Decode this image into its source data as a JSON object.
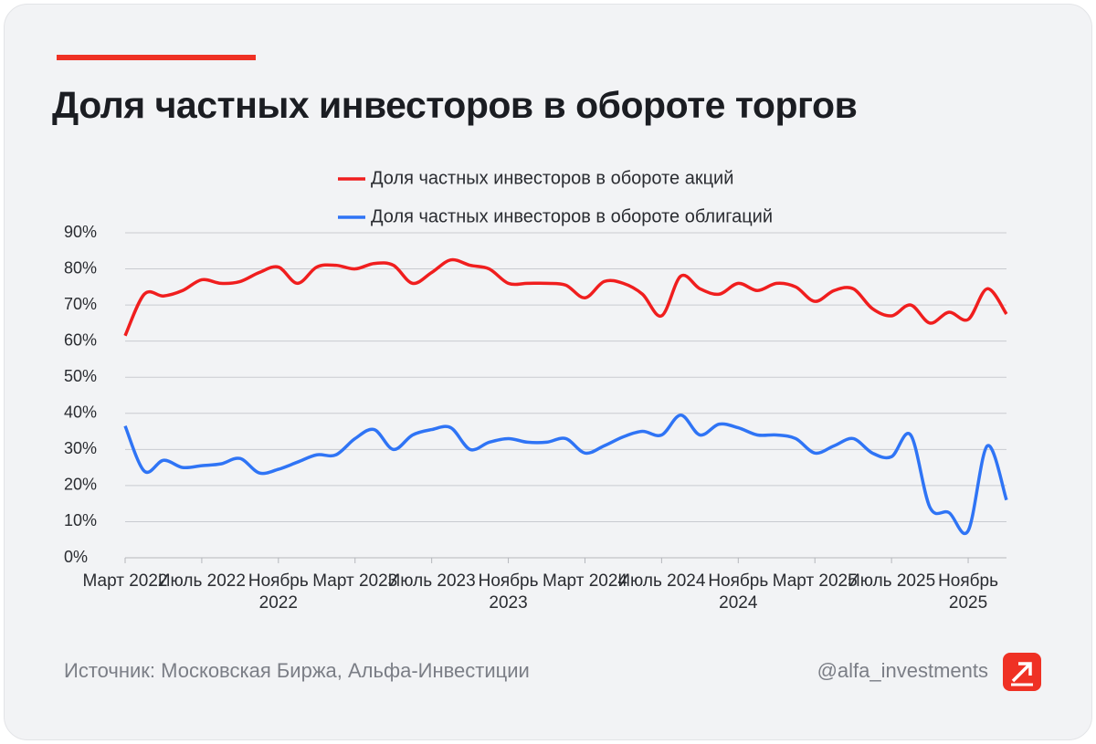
{
  "title": "Доля частных инвесторов в обороте торгов",
  "chart_data": {
    "type": "line",
    "categories": [
      "Март 2022",
      null,
      null,
      null,
      "Июль 2022",
      null,
      null,
      null,
      "Ноябрь 2022",
      null,
      null,
      null,
      "Март 2023",
      null,
      null,
      null,
      "Июль 2023",
      null,
      null,
      null,
      "Ноябрь 2023",
      null,
      null,
      null,
      "Март 2024",
      null,
      null,
      null,
      "Июль 2024",
      null,
      null,
      null,
      "Ноябрь 2024",
      null,
      null,
      null,
      "Март 2025",
      null,
      null,
      null,
      "Июль 2025",
      null,
      null,
      null,
      "Ноябрь 2025",
      null,
      null
    ],
    "series": [
      {
        "name": "Доля частных инвесторов в обороте акций",
        "color": "#f01e1e",
        "values": [
          61.5,
          73,
          72.5,
          74,
          77,
          76,
          76.5,
          79,
          80.5,
          76,
          80.5,
          81,
          80,
          81.5,
          81,
          76,
          79,
          82.5,
          81,
          80,
          76,
          76,
          76,
          75.5,
          72,
          76.5,
          76,
          73,
          67,
          78,
          74.5,
          73,
          76,
          74,
          76,
          75,
          71,
          74,
          74.5,
          69,
          67,
          70,
          65,
          68,
          66,
          74.5,
          67.5
        ]
      },
      {
        "name": "Доля частных инвесторов в обороте облигаций",
        "color": "#2f74f5",
        "values": [
          36.5,
          24,
          27,
          25,
          25.5,
          26,
          27.5,
          23.5,
          24.5,
          26.5,
          28.5,
          28.5,
          33,
          35.5,
          30,
          34,
          35.5,
          36,
          30,
          32,
          33,
          32,
          32,
          33,
          29,
          31,
          33.5,
          35,
          34,
          39.5,
          34,
          37,
          36,
          34,
          34,
          33,
          29,
          31,
          33,
          29,
          28,
          34,
          14,
          12.5,
          7.5,
          31,
          16
        ]
      }
    ],
    "ylim": [
      0,
      90
    ],
    "yticks": [
      {
        "value": 0,
        "label": "0%"
      },
      {
        "value": 10,
        "label": "10%"
      },
      {
        "value": 20,
        "label": "20%"
      },
      {
        "value": 30,
        "label": "30%"
      },
      {
        "value": 40,
        "label": "40%"
      },
      {
        "value": 50,
        "label": "50%"
      },
      {
        "value": 60,
        "label": "60%"
      },
      {
        "value": 70,
        "label": "70%"
      },
      {
        "value": 80,
        "label": "80%"
      },
      {
        "value": 90,
        "label": "90%"
      }
    ],
    "grid": true
  },
  "footer": {
    "source": "Источник: Московская Биржа, Альфа-Инвестиции",
    "handle": "@alfa_investments"
  }
}
